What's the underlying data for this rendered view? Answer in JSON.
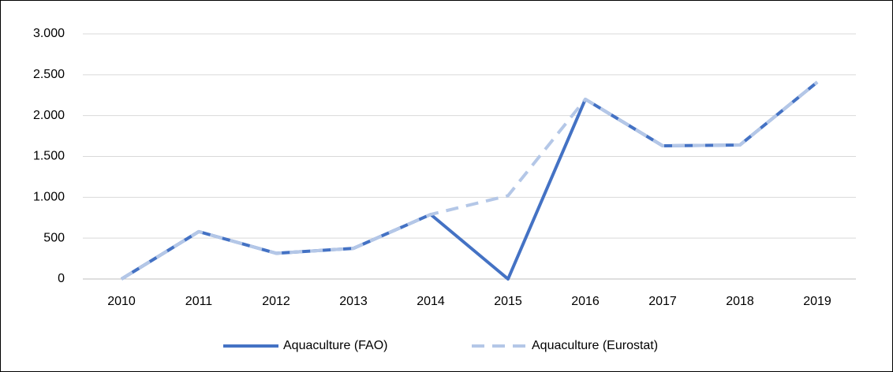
{
  "chart_data": {
    "type": "line",
    "categories": [
      "2010",
      "2011",
      "2012",
      "2013",
      "2014",
      "2015",
      "2016",
      "2017",
      "2018",
      "2019"
    ],
    "series": [
      {
        "name": "Aquaculture (FAO)",
        "color": "#4472c4",
        "dash": false,
        "values": [
          0,
          580,
          315,
          375,
          790,
          0,
          2200,
          1630,
          1640,
          2410
        ]
      },
      {
        "name": "Aquaculture (Eurostat)",
        "color": "#b4c7e7",
        "dash": true,
        "values": [
          0,
          580,
          315,
          375,
          790,
          1020,
          2200,
          1630,
          1640,
          2410
        ]
      }
    ],
    "ylim": [
      0,
      3000
    ],
    "yticks": [
      0,
      500,
      {
        "value": 1000,
        "label": "1.000"
      },
      {
        "value": 1500,
        "label": "1.500"
      },
      {
        "value": 2000,
        "label": "2.000"
      },
      {
        "value": 2500,
        "label": "2.500"
      },
      {
        "value": 3000,
        "label": "3.000"
      }
    ],
    "grid": true,
    "legend": "bottom"
  }
}
